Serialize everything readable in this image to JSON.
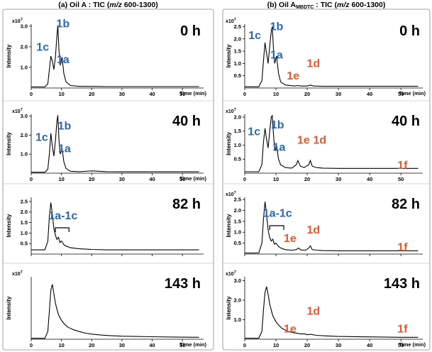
{
  "colors": {
    "blue": "#2a68b4",
    "orange": "#e8582e",
    "trace": "#000000"
  },
  "chart_data": [
    {
      "type": "line",
      "column_title": "(a)  Oil A : TIC (m/z 600-1300)",
      "title_parts": {
        "prefix": "(a)  Oil A : TIC (",
        "italic": "m/z",
        "suffix": " 600-1300)"
      },
      "panels": [
        {
          "time_label": "0 h",
          "ylabel": "Intensity",
          "xlabel": "Time (min)",
          "exponent": "x10",
          "exponent_sup": "7",
          "xlim": [
            0,
            57
          ],
          "ylim": [
            0,
            3.1
          ],
          "xticks": [
            "0",
            "10",
            "20",
            "30",
            "40",
            "50"
          ],
          "yticks": [
            "1.0",
            "2.0",
            "3.0"
          ],
          "series": [
            {
              "x": [
                0,
                4.5,
                5.5,
                6.0,
                6.5,
                7.0,
                7.5,
                8.0,
                8.5,
                8.8,
                9.2,
                9.6,
                10.2,
                10.8,
                11.5,
                13,
                16,
                20,
                25,
                30,
                40,
                50,
                55.5
              ],
              "y": [
                0.05,
                0.05,
                0.2,
                0.9,
                1.55,
                1.3,
                0.9,
                1.5,
                2.5,
                3.05,
                1.8,
                1.1,
                1.5,
                0.7,
                0.3,
                0.12,
                0.08,
                0.08,
                0.07,
                0.07,
                0.07,
                0.07,
                0.07
              ]
            }
          ],
          "labels": [
            {
              "text": "1c",
              "color": "orange_blue_1",
              "x": 3.8,
              "y": 1.8
            },
            {
              "text": "1b",
              "color": "blue",
              "x": 10.5,
              "y": 2.95
            },
            {
              "text": "1a",
              "color": "blue",
              "x": 10.5,
              "y": 1.2
            }
          ]
        },
        {
          "time_label": "40 h",
          "ylabel": "Intensity",
          "xlabel": "Time (min)",
          "exponent": "x10",
          "exponent_sup": "7",
          "xlim": [
            0,
            57
          ],
          "ylim": [
            0,
            3.1
          ],
          "xticks": [
            "0",
            "10",
            "20",
            "30",
            "40",
            "50"
          ],
          "yticks": [
            "1.0",
            "2.0",
            "3.0"
          ],
          "series": [
            {
              "x": [
                0,
                4.5,
                5.5,
                6.0,
                6.5,
                7.0,
                7.5,
                8.0,
                8.5,
                8.8,
                9.2,
                9.6,
                10.2,
                10.8,
                11.5,
                13,
                16,
                20,
                25,
                30,
                40,
                50,
                55.5
              ],
              "y": [
                0.05,
                0.05,
                0.2,
                1.0,
                2.1,
                1.4,
                0.9,
                1.7,
                2.7,
                3.05,
                1.7,
                1.0,
                1.3,
                0.6,
                0.25,
                0.1,
                0.08,
                0.12,
                0.08,
                0.07,
                0.07,
                0.07,
                0.07
              ]
            }
          ],
          "labels": [
            {
              "text": "1c",
              "color": "blue",
              "x": 3.5,
              "y": 1.7
            },
            {
              "text": "1b",
              "color": "blue",
              "x": 11.0,
              "y": 2.3
            },
            {
              "text": "1a",
              "color": "blue",
              "x": 11.0,
              "y": 1.1
            }
          ]
        },
        {
          "time_label": "82 h",
          "ylabel": "Intensity",
          "xlabel": "",
          "exponent": "",
          "exponent_sup": "",
          "xlim": [
            0,
            57
          ],
          "ylim": [
            0,
            2.7
          ],
          "xticks": [],
          "yticks": [
            "0.5",
            "1.0",
            "1.5",
            "2.0",
            "2.5"
          ],
          "series": [
            {
              "x": [
                0,
                4.5,
                5.5,
                6.0,
                6.5,
                7.0,
                7.5,
                8.0,
                8.5,
                9.0,
                9.5,
                10.0,
                10.8,
                11.5,
                13,
                16,
                20,
                25,
                30,
                40,
                50,
                55.5
              ],
              "y": [
                0.2,
                0.2,
                0.6,
                1.8,
                2.45,
                1.9,
                1.2,
                0.9,
                0.7,
                0.8,
                0.55,
                0.62,
                0.45,
                0.38,
                0.3,
                0.25,
                0.22,
                0.2,
                0.2,
                0.2,
                0.2,
                0.2
              ]
            }
          ],
          "labels": [
            {
              "text": "1a-1c",
              "color": "blue",
              "x": 10.5,
              "y": 1.65
            }
          ],
          "bracket": {
            "x1": 8.0,
            "x2": 12.5,
            "y": 1.25
          }
        },
        {
          "time_label": "143 h",
          "ylabel": "Intensity",
          "xlabel": "Time (min)",
          "exponent": "x10",
          "exponent_sup": "7",
          "xlim": [
            0,
            57
          ],
          "ylim": [
            0,
            3.3
          ],
          "xticks": [
            "0",
            "10",
            "20",
            "30",
            "40",
            "50"
          ],
          "yticks": [],
          "series": [
            {
              "x": [
                0,
                4.5,
                5.5,
                6.0,
                6.5,
                7.0,
                7.5,
                8.0,
                8.5,
                9.0,
                10,
                11,
                12,
                14,
                16,
                18,
                20,
                23,
                26,
                30,
                40,
                50,
                55.5
              ],
              "y": [
                0.05,
                0.05,
                0.4,
                1.5,
                2.6,
                2.9,
                2.4,
                1.9,
                1.6,
                1.3,
                1.0,
                0.8,
                0.65,
                0.5,
                0.4,
                0.32,
                0.27,
                0.22,
                0.19,
                0.16,
                0.13,
                0.11,
                0.1
              ]
            }
          ],
          "labels": []
        }
      ]
    },
    {
      "type": "line",
      "column_title": "(b) Oil AMBDTC : TIC (m/z 600-1300)",
      "title_parts": {
        "prefix": "(b) Oil A",
        "subscript": "MBDTC",
        "mid": " : TIC (",
        "italic": "m/z",
        "suffix": " 600-1300)"
      },
      "panels": [
        {
          "time_label": "0 h",
          "ylabel": "Intensity",
          "xlabel": "Time (min)",
          "exponent": "x10",
          "exponent_sup": "7",
          "xlim": [
            0,
            57
          ],
          "ylim": [
            0,
            2.6
          ],
          "xticks": [
            "0",
            "10",
            "20",
            "30",
            "40",
            "50"
          ],
          "yticks": [
            "0.5",
            "1.0",
            "1.5",
            "2.0",
            "2.5"
          ],
          "series": [
            {
              "x": [
                0,
                4.5,
                5.5,
                6.0,
                6.5,
                7.0,
                7.5,
                8.0,
                8.5,
                8.8,
                9.2,
                9.6,
                10.2,
                10.8,
                11.5,
                13,
                16,
                17,
                18,
                20,
                21,
                22,
                25,
                30,
                40,
                50,
                55.5
              ],
              "y": [
                0.05,
                0.05,
                0.3,
                1.1,
                1.85,
                1.4,
                1.0,
                1.7,
                2.3,
                2.5,
                1.6,
                1.0,
                1.3,
                0.6,
                0.25,
                0.12,
                0.08,
                0.1,
                0.08,
                0.08,
                0.12,
                0.08,
                0.07,
                0.07,
                0.07,
                0.07,
                0.07
              ]
            }
          ],
          "labels": [
            {
              "text": "1c",
              "color": "blue",
              "x": 3.2,
              "y": 2.0
            },
            {
              "text": "1b",
              "color": "blue",
              "x": 10.2,
              "y": 2.35
            },
            {
              "text": "1a",
              "color": "blue",
              "x": 10.2,
              "y": 1.2
            },
            {
              "text": "1e",
              "color": "orange",
              "x": 15.5,
              "y": 0.35
            },
            {
              "text": "1d",
              "color": "orange",
              "x": 22.0,
              "y": 0.85
            }
          ]
        },
        {
          "time_label": "40 h",
          "ylabel": "Intensity",
          "xlabel": "",
          "exponent": "x10",
          "exponent_sup": "7",
          "xlim": [
            0,
            57
          ],
          "ylim": [
            0,
            2.1
          ],
          "xticks": [
            "0",
            "10",
            "20",
            "30",
            "40",
            "50"
          ],
          "yticks": [
            "0.5",
            "1.0",
            "1.5",
            "2.0"
          ],
          "series": [
            {
              "x": [
                0,
                4.5,
                5.5,
                6.0,
                6.5,
                7.0,
                7.5,
                8.0,
                8.5,
                8.8,
                9.2,
                9.6,
                10.2,
                10.8,
                11.5,
                13,
                15,
                16.5,
                17,
                17.8,
                19,
                20.5,
                21,
                21.6,
                23,
                25,
                30,
                40,
                50,
                55.5
              ],
              "y": [
                0.05,
                0.05,
                0.3,
                1.1,
                1.6,
                1.2,
                0.9,
                1.5,
                2.0,
                2.05,
                1.4,
                0.8,
                1.0,
                0.5,
                0.3,
                0.2,
                0.18,
                0.3,
                0.45,
                0.25,
                0.2,
                0.3,
                0.45,
                0.25,
                0.2,
                0.18,
                0.17,
                0.17,
                0.17,
                0.17
              ]
            }
          ],
          "labels": [
            {
              "text": "1c",
              "color": "blue",
              "x": 3.0,
              "y": 1.35
            },
            {
              "text": "1b",
              "color": "blue",
              "x": 10.5,
              "y": 1.6
            },
            {
              "text": "1a",
              "color": "blue",
              "x": 11.0,
              "y": 0.8
            },
            {
              "text": "1e",
              "color": "orange",
              "x": 18.8,
              "y": 1.05
            },
            {
              "text": "1d",
              "color": "orange",
              "x": 24.0,
              "y": 1.05
            },
            {
              "text": "1f",
              "color": "orange",
              "x": 50.5,
              "y": 0.15
            }
          ]
        },
        {
          "time_label": "82 h",
          "ylabel": "Intensity",
          "xlabel": "",
          "exponent": "x10",
          "exponent_sup": "7",
          "xlim": [
            0,
            57
          ],
          "ylim": [
            0,
            2.6
          ],
          "xticks": [],
          "yticks": [
            "0.5",
            "1.0",
            "1.5",
            "2.0",
            "2.5"
          ],
          "series": [
            {
              "x": [
                0,
                4.5,
                5.5,
                6.0,
                6.5,
                7.0,
                7.5,
                8.0,
                8.5,
                9.0,
                9.5,
                10.0,
                10.8,
                11.5,
                13,
                15,
                16.5,
                17.2,
                18,
                19.5,
                20.5,
                21,
                21.6,
                23,
                25,
                30,
                40,
                50,
                55.5
              ],
              "y": [
                0.05,
                0.05,
                0.5,
                1.6,
                2.4,
                1.8,
                1.1,
                0.75,
                0.6,
                0.68,
                0.45,
                0.5,
                0.35,
                0.28,
                0.2,
                0.18,
                0.2,
                0.28,
                0.19,
                0.18,
                0.28,
                0.38,
                0.2,
                0.18,
                0.16,
                0.15,
                0.15,
                0.15,
                0.15
              ]
            }
          ],
          "labels": [
            {
              "text": "1a-1c",
              "color": "blue",
              "x": 10.5,
              "y": 1.7
            },
            {
              "text": "1e",
              "color": "orange",
              "x": 14.5,
              "y": 0.55
            },
            {
              "text": "1d",
              "color": "orange",
              "x": 22.0,
              "y": 0.95
            },
            {
              "text": "1f",
              "color": "orange",
              "x": 50.5,
              "y": 0.15
            }
          ],
          "bracket": {
            "x1": 8.0,
            "x2": 12.5,
            "y": 1.3
          }
        },
        {
          "time_label": "143 h",
          "ylabel": "Intensity",
          "xlabel": "Time (min)",
          "exponent": "x10",
          "exponent_sup": "7",
          "xlim": [
            0,
            57
          ],
          "ylim": [
            0,
            3.2
          ],
          "xticks": [
            "0",
            "10",
            "20",
            "30",
            "40",
            "50"
          ],
          "yticks": [
            "1.0",
            "2.0",
            "3.0"
          ],
          "series": [
            {
              "x": [
                0,
                4.5,
                5.5,
                6.0,
                6.5,
                7.0,
                7.5,
                8.0,
                8.5,
                9.0,
                10,
                11,
                12,
                14,
                16,
                17,
                18,
                19,
                20,
                21,
                23,
                26,
                30,
                40,
                50,
                55.5
              ],
              "y": [
                0.05,
                0.05,
                0.4,
                1.5,
                2.4,
                2.7,
                2.3,
                1.8,
                1.5,
                1.2,
                0.9,
                0.7,
                0.55,
                0.4,
                0.32,
                0.3,
                0.27,
                0.28,
                0.23,
                0.25,
                0.2,
                0.17,
                0.14,
                0.12,
                0.1,
                0.1
              ]
            }
          ],
          "labels": [
            {
              "text": "1e",
              "color": "orange",
              "x": 14.5,
              "y": 0.35
            },
            {
              "text": "1d",
              "color": "orange",
              "x": 22.0,
              "y": 1.25
            },
            {
              "text": "1f",
              "color": "orange",
              "x": 50.5,
              "y": 0.35
            }
          ]
        }
      ]
    }
  ]
}
